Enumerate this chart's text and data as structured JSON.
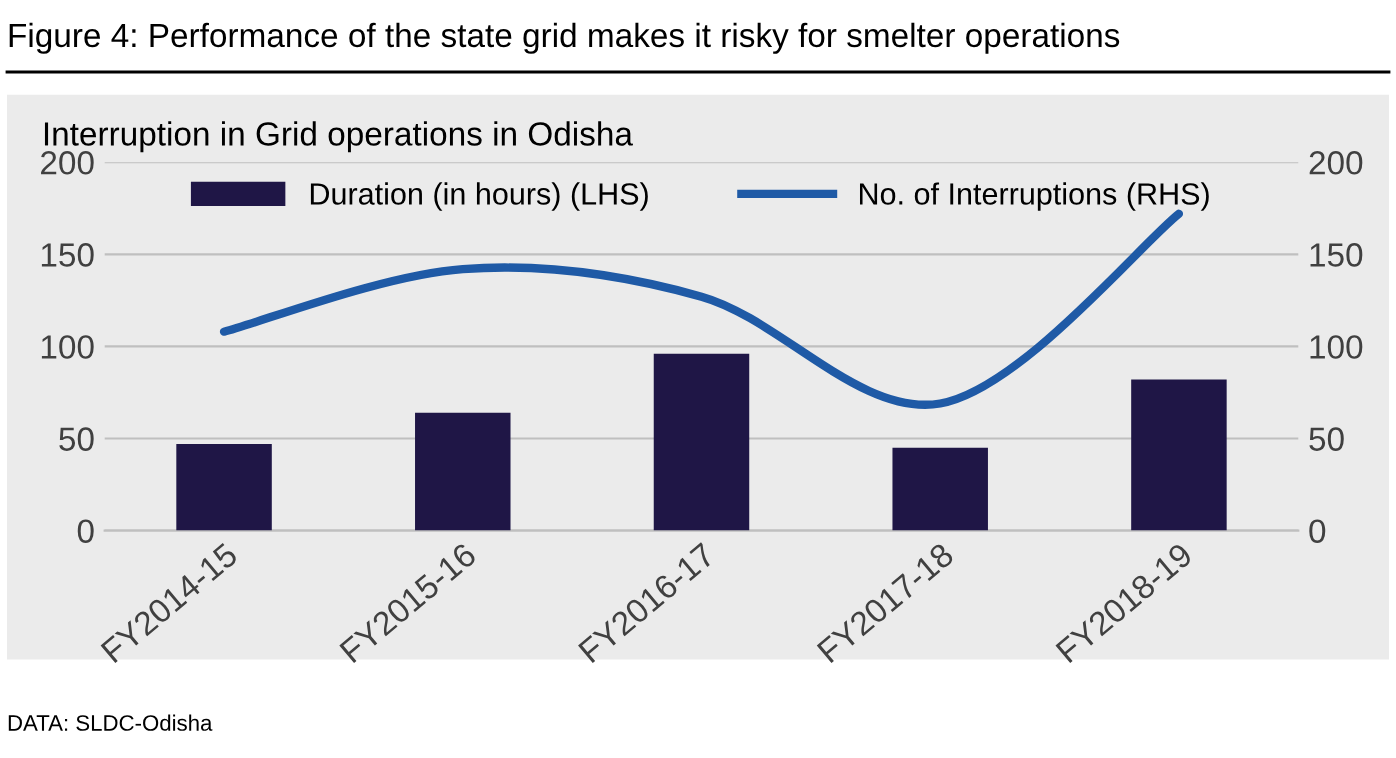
{
  "chart_data": {
    "type": "bar",
    "title": "Figure 4: Performance of the state grid makes it risky for smelter operations",
    "subtitle": "Interruption in Grid operations in Odisha",
    "categories": [
      "FY2014-15",
      "FY2015-16",
      "FY2016-17",
      "FY2017-18",
      "FY2018-19"
    ],
    "series": [
      {
        "name": "Duration (in hours) (LHS)",
        "color": "#1f1646",
        "values": [
          47,
          64,
          96,
          45,
          82
        ]
      },
      {
        "name": "No. of Interruptions (RHS)",
        "type": "line",
        "axis": "y2",
        "color": "#1f5aa6",
        "values": [
          108,
          142,
          127,
          69,
          172
        ]
      }
    ],
    "ylim": [
      0,
      200
    ],
    "yticks": [
      0,
      50,
      100,
      150,
      200
    ],
    "y2lim": [
      0,
      200
    ],
    "y2ticks": [
      0,
      50,
      100,
      150,
      200
    ],
    "grid": "y",
    "legend": "top",
    "annotations": [
      "DATA: SLDC-Odisha"
    ]
  }
}
